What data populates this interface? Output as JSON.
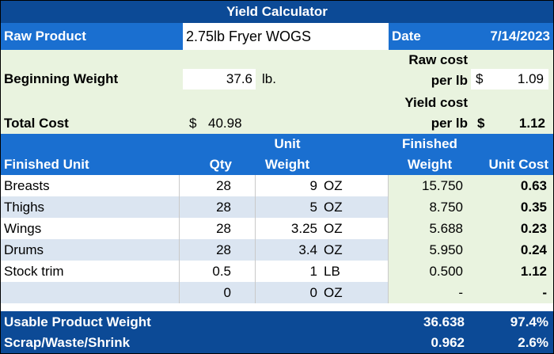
{
  "title": "Yield Calculator",
  "header": {
    "raw_product_label": "Raw Product",
    "raw_product_value": "2.75lb Fryer WOGS",
    "date_label": "Date",
    "date_value": "7/14/2023"
  },
  "inputs": {
    "beginning_weight_label": "Beginning Weight",
    "beginning_weight_value": "37.6",
    "beginning_weight_unit": "lb.",
    "raw_cost_label_1": "Raw cost",
    "raw_cost_label_2": "per lb",
    "raw_cost_currency": "$",
    "raw_cost_value": "1.09",
    "yield_cost_label_1": "Yield cost",
    "yield_cost_label_2": "per lb",
    "yield_cost_currency": "$",
    "yield_cost_value": "1.12",
    "total_cost_label": "Total Cost",
    "total_cost_currency": "$",
    "total_cost_value": "40.98"
  },
  "columns": {
    "finished_unit": "Finished Unit",
    "qty": "Qty",
    "unit_weight_1": "Unit",
    "unit_weight_2": "Weight",
    "finished_weight_1": "Finished",
    "finished_weight_2": "Weight",
    "unit_cost": "Unit Cost"
  },
  "rows": [
    {
      "name": "Breasts",
      "qty": "28",
      "weight": "9",
      "unit": "OZ",
      "finished": "15.750",
      "cost": "0.63"
    },
    {
      "name": "Thighs",
      "qty": "28",
      "weight": "5",
      "unit": "OZ",
      "finished": "8.750",
      "cost": "0.35"
    },
    {
      "name": "Wings",
      "qty": "28",
      "weight": "3.25",
      "unit": "OZ",
      "finished": "5.688",
      "cost": "0.23"
    },
    {
      "name": "Drums",
      "qty": "28",
      "weight": "3.4",
      "unit": "OZ",
      "finished": "5.950",
      "cost": "0.24"
    },
    {
      "name": "Stock trim",
      "qty": "0.5",
      "weight": "1",
      "unit": "LB",
      "finished": "0.500",
      "cost": "1.12"
    },
    {
      "name": "",
      "qty": "0",
      "weight": "0",
      "unit": "OZ",
      "finished": "-",
      "cost": "-"
    }
  ],
  "totals": {
    "usable_label": "Usable Product Weight",
    "usable_weight": "36.638",
    "usable_pct": "97.4%",
    "scrap_label": "Scrap/Waste/Shrink",
    "scrap_weight": "0.962",
    "scrap_pct": "2.6%"
  }
}
